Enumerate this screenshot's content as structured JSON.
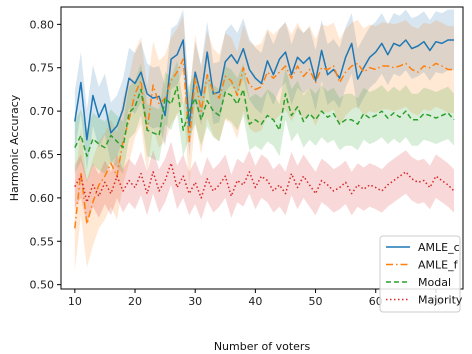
{
  "chart_data": {
    "type": "line",
    "xlabel": "Number of voters",
    "ylabel": "Harmonic Accuracy",
    "xlim": [
      7.7,
      74.5
    ],
    "ylim": [
      0.495,
      0.82
    ],
    "x_ticks": [
      10,
      20,
      30,
      40,
      50,
      60,
      70
    ],
    "y_ticks": [
      0.5,
      0.55,
      0.6,
      0.65,
      0.7,
      0.75,
      0.8
    ],
    "grid": false,
    "legend_position": "lower-right",
    "x": [
      10,
      11,
      12,
      13,
      14,
      15,
      16,
      17,
      18,
      19,
      20,
      21,
      22,
      23,
      24,
      25,
      26,
      27,
      28,
      29,
      30,
      31,
      32,
      33,
      34,
      35,
      36,
      37,
      38,
      39,
      40,
      41,
      42,
      43,
      44,
      45,
      46,
      47,
      48,
      49,
      50,
      51,
      52,
      53,
      54,
      55,
      56,
      57,
      58,
      59,
      60,
      61,
      62,
      63,
      64,
      65,
      66,
      67,
      68,
      69,
      70,
      71,
      72,
      73
    ],
    "series": [
      {
        "name": "AMLE_c",
        "color": "#1f77b4",
        "dash": "solid",
        "band_width": 0.035,
        "values": [
          0.688,
          0.733,
          0.667,
          0.718,
          0.693,
          0.708,
          0.675,
          0.683,
          0.702,
          0.738,
          0.732,
          0.745,
          0.72,
          0.715,
          0.717,
          0.695,
          0.76,
          0.765,
          0.782,
          0.683,
          0.745,
          0.718,
          0.768,
          0.72,
          0.722,
          0.757,
          0.765,
          0.755,
          0.772,
          0.748,
          0.738,
          0.732,
          0.758,
          0.742,
          0.76,
          0.768,
          0.742,
          0.762,
          0.755,
          0.762,
          0.735,
          0.77,
          0.742,
          0.748,
          0.738,
          0.762,
          0.778,
          0.737,
          0.75,
          0.762,
          0.768,
          0.778,
          0.765,
          0.778,
          0.775,
          0.782,
          0.772,
          0.775,
          0.78,
          0.77,
          0.78,
          0.778,
          0.782,
          0.782
        ]
      },
      {
        "name": "AMLE_f",
        "color": "#ff7f0e",
        "dash": "dashdot",
        "band_width": 0.05,
        "values": [
          0.565,
          0.63,
          0.57,
          0.595,
          0.615,
          0.625,
          0.64,
          0.625,
          0.665,
          0.69,
          0.72,
          0.735,
          0.678,
          0.73,
          0.708,
          0.715,
          0.735,
          0.745,
          0.76,
          0.665,
          0.738,
          0.7,
          0.742,
          0.722,
          0.715,
          0.74,
          0.735,
          0.718,
          0.75,
          0.73,
          0.725,
          0.728,
          0.745,
          0.738,
          0.745,
          0.752,
          0.738,
          0.752,
          0.74,
          0.748,
          0.733,
          0.75,
          0.748,
          0.752,
          0.733,
          0.745,
          0.752,
          0.755,
          0.745,
          0.75,
          0.748,
          0.752,
          0.752,
          0.75,
          0.752,
          0.755,
          0.748,
          0.745,
          0.752,
          0.75,
          0.755,
          0.752,
          0.748,
          0.748
        ]
      },
      {
        "name": "Modal",
        "color": "#2ca02c",
        "dash": "dashed",
        "band_width": 0.03,
        "values": [
          0.658,
          0.672,
          0.648,
          0.668,
          0.662,
          0.658,
          0.672,
          0.665,
          0.658,
          0.698,
          0.705,
          0.725,
          0.678,
          0.675,
          0.672,
          0.715,
          0.708,
          0.728,
          0.678,
          0.7,
          0.715,
          0.69,
          0.712,
          0.7,
          0.695,
          0.722,
          0.718,
          0.708,
          0.725,
          0.685,
          0.69,
          0.685,
          0.695,
          0.69,
          0.678,
          0.72,
          0.695,
          0.705,
          0.688,
          0.697,
          0.69,
          0.7,
          0.693,
          0.697,
          0.685,
          0.69,
          0.69,
          0.685,
          0.697,
          0.692,
          0.695,
          0.7,
          0.692,
          0.698,
          0.693,
          0.7,
          0.69,
          0.69,
          0.697,
          0.695,
          0.692,
          0.695,
          0.698,
          0.69
        ]
      },
      {
        "name": "Majority",
        "color": "#d62728",
        "dash": "dotted",
        "band_width": 0.025,
        "values": [
          0.613,
          0.625,
          0.595,
          0.615,
          0.602,
          0.618,
          0.605,
          0.625,
          0.608,
          0.62,
          0.612,
          0.628,
          0.605,
          0.63,
          0.608,
          0.62,
          0.64,
          0.612,
          0.625,
          0.605,
          0.618,
          0.6,
          0.622,
          0.608,
          0.615,
          0.625,
          0.602,
          0.62,
          0.615,
          0.63,
          0.612,
          0.625,
          0.62,
          0.608,
          0.615,
          0.605,
          0.628,
          0.612,
          0.625,
          0.615,
          0.605,
          0.62,
          0.615,
          0.608,
          0.612,
          0.618,
          0.605,
          0.615,
          0.61,
          0.615,
          0.612,
          0.608,
          0.615,
          0.62,
          0.625,
          0.63,
          0.622,
          0.618,
          0.62,
          0.612,
          0.625,
          0.62,
          0.615,
          0.608
        ]
      }
    ]
  }
}
